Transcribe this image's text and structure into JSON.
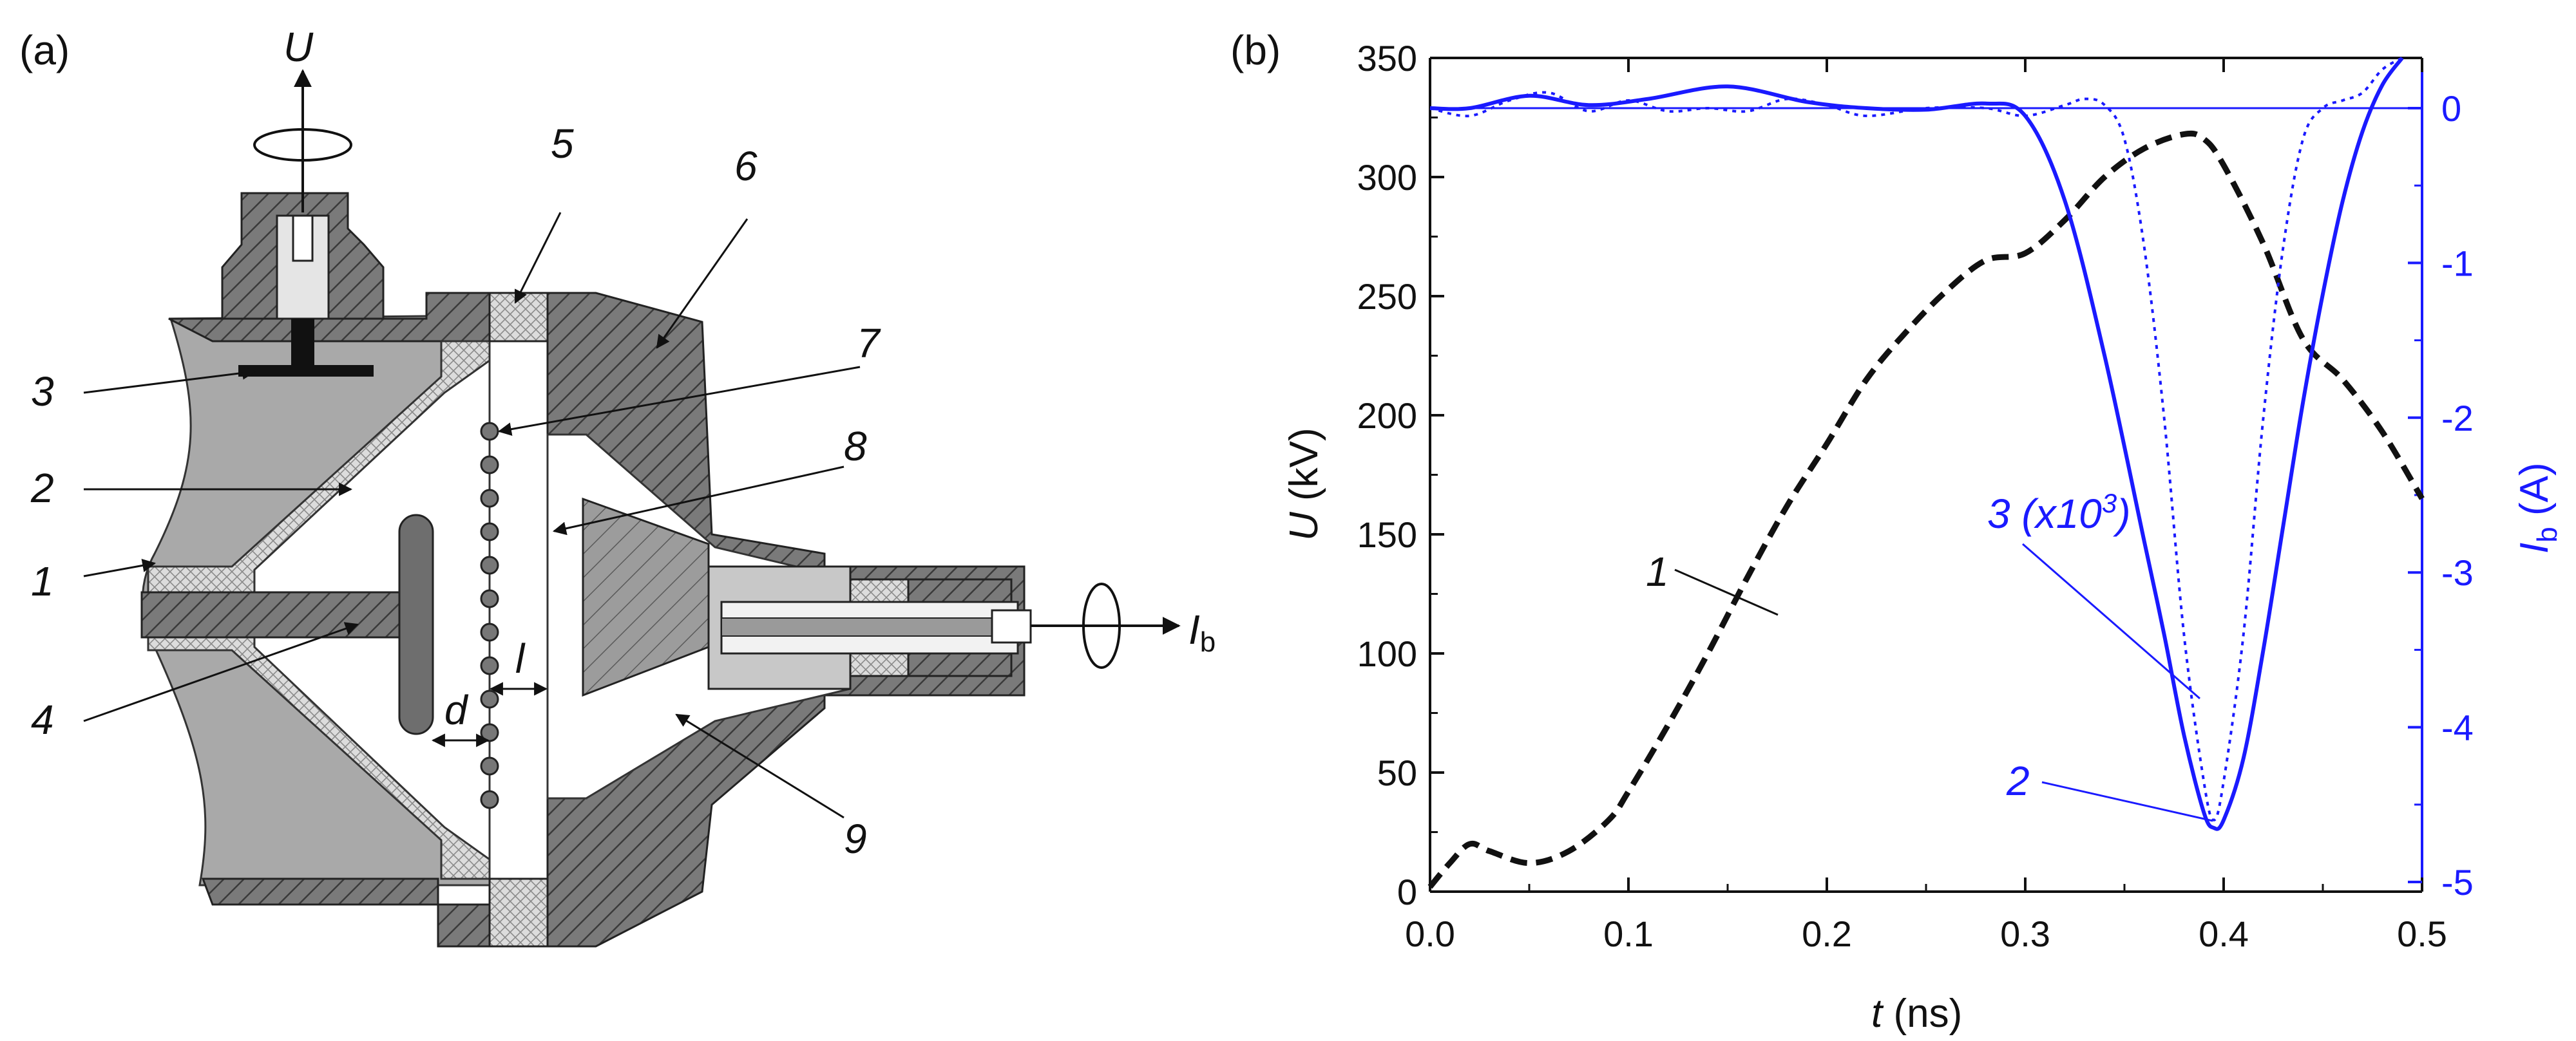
{
  "panel_a": {
    "label": "(a)",
    "voltage_label": "U",
    "beam_current_label_main": "I",
    "beam_current_label_sub": "b",
    "gap_label_d": "d",
    "gap_label_l": "l",
    "part_numbers": [
      "1",
      "2",
      "3",
      "4",
      "5",
      "6",
      "7",
      "8",
      "9"
    ]
  },
  "panel_b": {
    "label": "(b)",
    "y_left_title_main": "U",
    "y_left_title_unit": " (kV)",
    "y_right_title_main": "I",
    "y_right_title_sub": "b",
    "y_right_title_unit": " (A)",
    "x_title_main": "t",
    "x_title_unit": " (ns)",
    "curve_label_1": "1",
    "curve_label_2": "2",
    "curve_label_3_prefix": "3 (x10",
    "curve_label_3_sup": "3",
    "curve_label_3_suffix": ")",
    "x_ticks": [
      "0.0",
      "0.1",
      "0.2",
      "0.3",
      "0.4",
      "0.5"
    ],
    "y_left_ticks": [
      "0",
      "50",
      "100",
      "150",
      "200",
      "250",
      "300",
      "350"
    ],
    "y_right_ticks": [
      "0",
      "-1",
      "-2",
      "-3",
      "-4",
      "-5"
    ]
  },
  "colors": {
    "voltage_curve": "#111111",
    "current_curves": "#1a1aff",
    "metal_gray": "#808080",
    "insulator_fill": "#d9d9d9"
  },
  "chart_data": {
    "type": "line",
    "xlabel": "t (ns)",
    "ylabel": "U (kV)",
    "ylabel_right": "Ib (A)",
    "xlim": [
      0.0,
      0.5
    ],
    "ylim": [
      0,
      350
    ],
    "ylim_right": [
      -5,
      0.35
    ],
    "grid": false,
    "series": [
      {
        "name": "1",
        "axis": "left",
        "style": "dashed",
        "x": [
          0.0,
          0.01,
          0.02,
          0.03,
          0.05,
          0.07,
          0.09,
          0.1,
          0.12,
          0.14,
          0.16,
          0.18,
          0.2,
          0.22,
          0.24,
          0.26,
          0.28,
          0.3,
          0.32,
          0.34,
          0.36,
          0.38,
          0.39,
          0.4,
          0.42,
          0.44,
          0.46,
          0.48,
          0.5
        ],
        "values": [
          2,
          12,
          20,
          17,
          12,
          17,
          30,
          42,
          70,
          100,
          132,
          162,
          188,
          215,
          235,
          252,
          265,
          268,
          282,
          300,
          312,
          318,
          316,
          305,
          272,
          232,
          215,
          193,
          165
        ]
      },
      {
        "name": "2",
        "axis": "right",
        "style": "solid",
        "x": [
          0.0,
          0.02,
          0.05,
          0.08,
          0.11,
          0.15,
          0.19,
          0.22,
          0.25,
          0.28,
          0.3,
          0.32,
          0.34,
          0.36,
          0.37,
          0.38,
          0.39,
          0.395,
          0.4,
          0.41,
          0.42,
          0.43,
          0.44,
          0.45,
          0.46,
          0.47,
          0.48,
          0.49
        ],
        "values": [
          0.0,
          0.0,
          0.08,
          0.02,
          0.06,
          0.14,
          0.04,
          0.0,
          -0.01,
          0.03,
          -0.05,
          -0.6,
          -1.6,
          -2.8,
          -3.4,
          -4.05,
          -4.55,
          -4.65,
          -4.6,
          -4.2,
          -3.5,
          -2.7,
          -1.9,
          -1.2,
          -0.6,
          -0.15,
          0.15,
          0.4
        ]
      },
      {
        "name": "3 (x10^3)",
        "axis": "right",
        "style": "dotted",
        "x": [
          0.0,
          0.02,
          0.04,
          0.06,
          0.08,
          0.1,
          0.12,
          0.14,
          0.16,
          0.18,
          0.2,
          0.22,
          0.25,
          0.28,
          0.3,
          0.32,
          0.33,
          0.34,
          0.35,
          0.36,
          0.37,
          0.38,
          0.39,
          0.395,
          0.4,
          0.41,
          0.42,
          0.43,
          0.44,
          0.45,
          0.46,
          0.47,
          0.48,
          0.49
        ],
        "values": [
          0.0,
          -0.05,
          0.05,
          0.1,
          -0.02,
          0.05,
          -0.02,
          0.0,
          -0.02,
          0.06,
          0.02,
          -0.05,
          0.0,
          0.0,
          -0.05,
          0.02,
          0.06,
          0.02,
          -0.2,
          -0.9,
          -2.0,
          -3.4,
          -4.35,
          -4.6,
          -4.35,
          -3.4,
          -2.0,
          -0.9,
          -0.2,
          0.0,
          0.05,
          0.1,
          0.25,
          0.4
        ]
      }
    ]
  }
}
